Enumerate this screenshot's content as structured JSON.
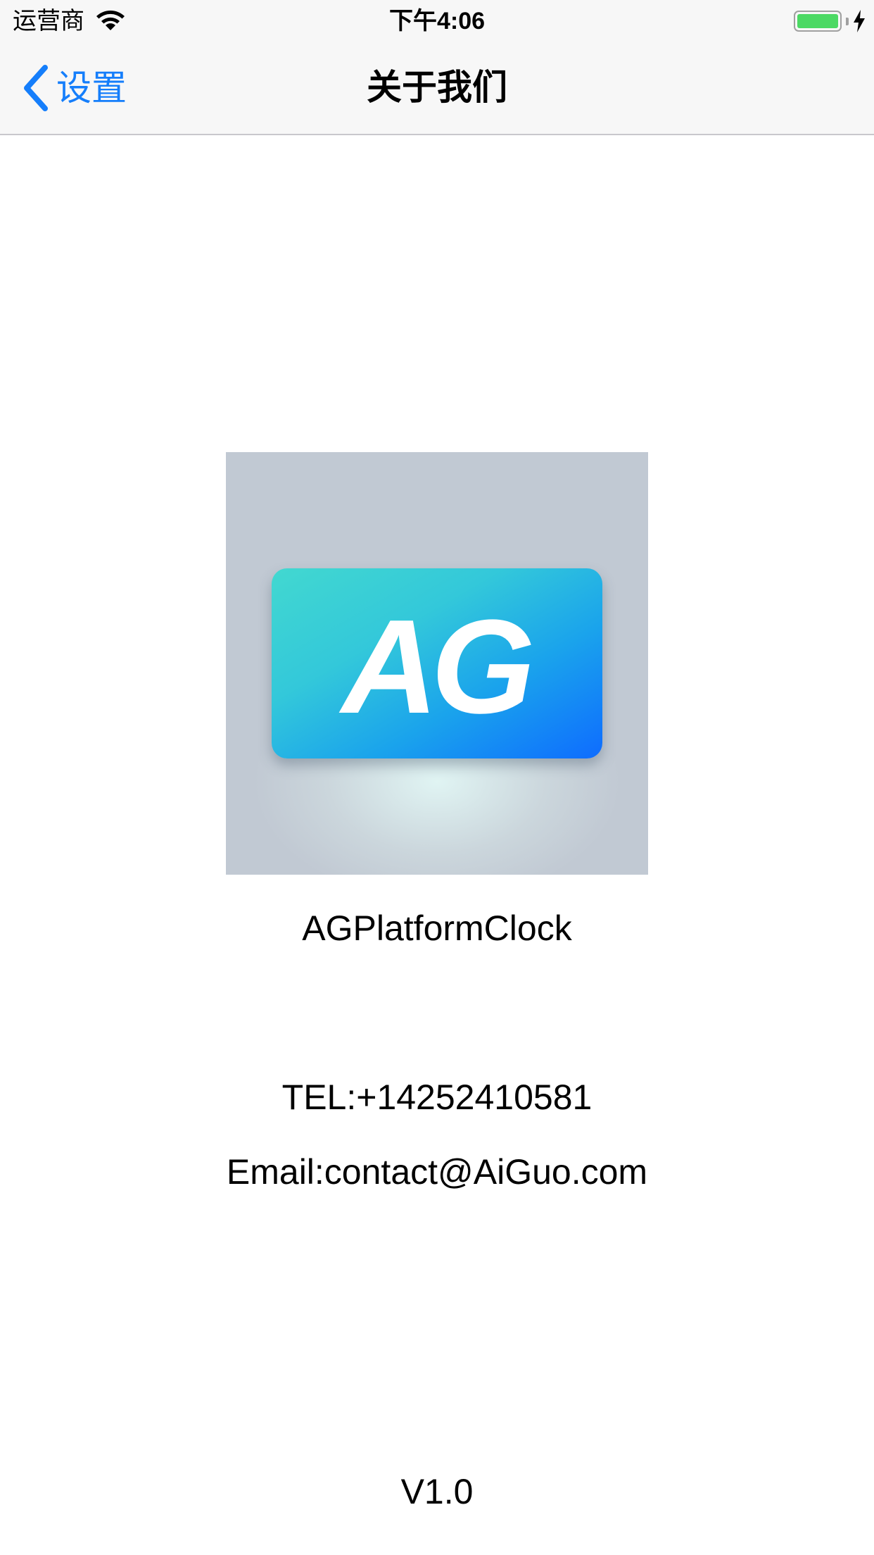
{
  "status_bar": {
    "carrier": "运营商",
    "time": "下午4:06",
    "battery_level": 1.0,
    "battery_color": "#4cd964",
    "wifi_icon": "wifi-icon",
    "charging_icon": "lightning-icon"
  },
  "nav": {
    "back_label": "设置",
    "back_icon": "chevron-left-icon",
    "title": "关于我们",
    "accent_color": "#157efb"
  },
  "content": {
    "logo_text": "AG",
    "app_name": "AGPlatformClock",
    "tel": "TEL:+14252410581",
    "email": "Email:contact@AiGuo.com",
    "version": "V1.0"
  }
}
